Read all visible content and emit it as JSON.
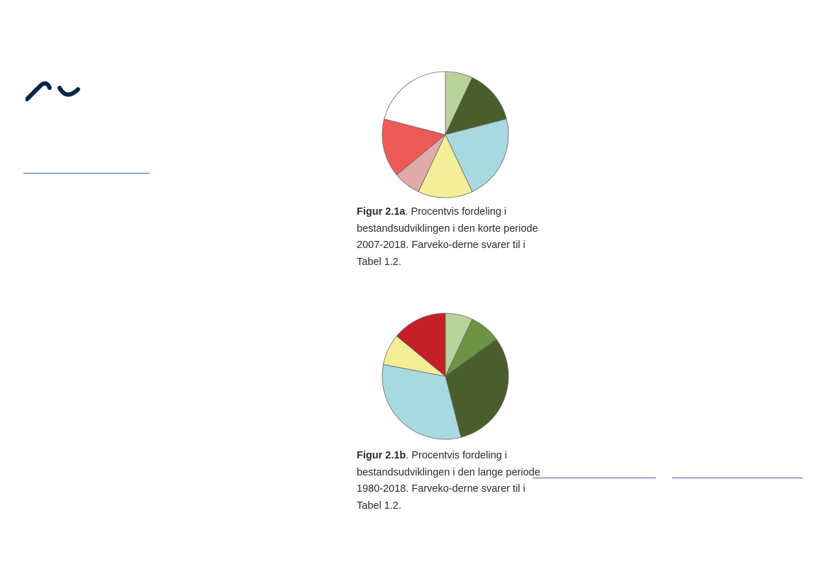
{
  "colors": {
    "brand": "#002546",
    "link": "#3b63b8",
    "slice_outline": "#666666"
  },
  "logo": {
    "icon": "au-wave-logo-icon"
  },
  "figures": [
    {
      "caption_label": "Figur 2.1a",
      "caption_text": ". Procentvis fordeling i bestandsudviklingen i den korte periode 2007-2018. Farveko-derne svarer til i Tabel 1.2."
    },
    {
      "caption_label": "Figur 2.1b",
      "caption_text": ". Procentvis fordeling i bestandsudviklingen i den lange periode 1980-2018. Farveko-derne svarer til i Tabel 1.2."
    }
  ],
  "chart_data": [
    {
      "type": "pie",
      "title": "",
      "slices": [
        {
          "value": 7,
          "color": "#b8d39b"
        },
        {
          "value": 14,
          "color": "#4a5e2b"
        },
        {
          "value": 22,
          "color": "#a8d8e0"
        },
        {
          "value": 14,
          "color": "#f4ee98"
        },
        {
          "value": 7,
          "color": "#e0aaa8"
        },
        {
          "value": 15,
          "color": "#ec5a58"
        },
        {
          "value": 21,
          "color": "#ffffff"
        }
      ]
    },
    {
      "type": "pie",
      "title": "",
      "slices": [
        {
          "value": 7,
          "color": "#b8d39b"
        },
        {
          "value": 8,
          "color": "#6c9444"
        },
        {
          "value": 31,
          "color": "#4a5e2b"
        },
        {
          "value": 32,
          "color": "#a8d8e0"
        },
        {
          "value": 8,
          "color": "#f4ee98"
        },
        {
          "value": 14,
          "color": "#c42029"
        }
      ]
    }
  ]
}
